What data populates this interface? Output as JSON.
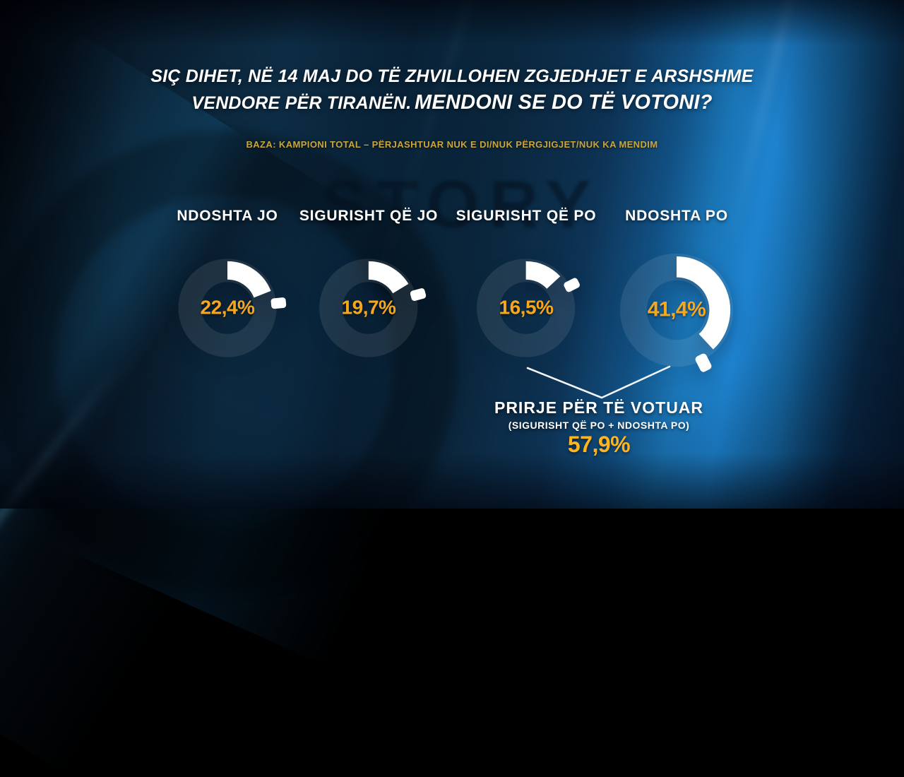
{
  "header": {
    "question_line1": "SIÇ DIHET, NË 14 MAJ DO TË ZHVILLOHEN ZGJEDHJET E ARSHSHME",
    "question_line2_regular": "VENDORE PËR TIRANËN.",
    "question_line2_bold": "MENDONI SE DO TË VOTONI?",
    "base_note": "BAZA: KAMPIONI TOTAL – PËRJASHTUAR NUK E DI/NUK PËRGJIGJET/NUK KA MENDIM"
  },
  "watermark": {
    "text": "STORY"
  },
  "chart_data": {
    "type": "pie",
    "variant": "donut-gauge",
    "categories": [
      "NDOSHTA JO",
      "SIGURISHT QË JO",
      "SIGURISHT QË PO",
      "NDOSHTA PO"
    ],
    "values": [
      22.4,
      19.7,
      16.5,
      41.4
    ],
    "value_labels": [
      "22,4%",
      "19,7%",
      "16,5%",
      "41,4%"
    ],
    "colors": {
      "arc": "#ffffff",
      "track": "rgba(255,255,255,0.09)",
      "value_text": "#f7a71d",
      "summary_value_text": "#ffb41f",
      "note_text": "#c9a53e"
    },
    "layout": {
      "start_angle_deg": 0,
      "clockwise": true,
      "marker": "detached-capsule-at-arc-end"
    },
    "summary": {
      "title": "PRIRJE PËR TË VOTUAR",
      "subtitle": "(SIGURISHT QË PO + NDOSHTA PO)",
      "value": 57.9,
      "value_label": "57,9%"
    }
  }
}
